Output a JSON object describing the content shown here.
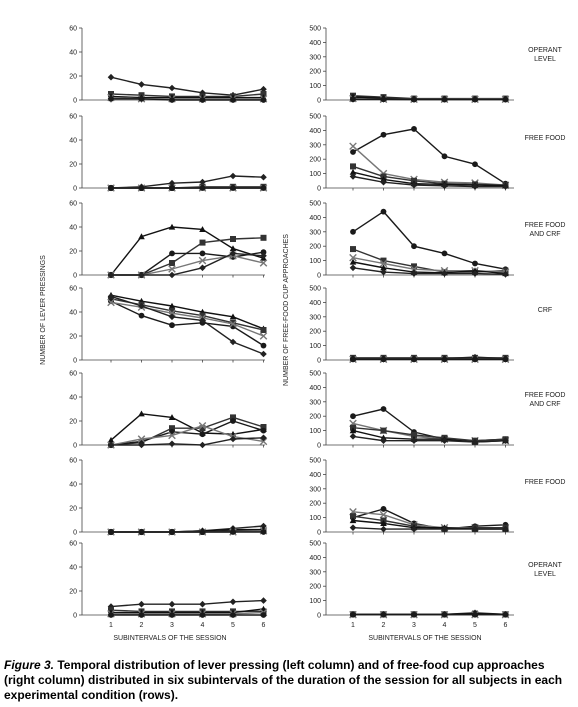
{
  "caption": {
    "label": "Figure 3.",
    "text": " Temporal distribution of lever pressing (left column) and of free-food cup approaches (right column) distributed in six subintervals of the duration of the session for all subjects in each experimental condition (rows)."
  },
  "left_ylabel": "NUMBER OF LEVER PRESSINGS",
  "right_ylabel": "NUMBER OF FREE-FOOD CUP APPROACHES",
  "xlabel": "SUBINTERVALS OF THE SESSION",
  "conditions": [
    {
      "lines": [
        "OPERANT",
        "LEVEL"
      ]
    },
    {
      "lines": [
        "FREE FOOD"
      ]
    },
    {
      "lines": [
        "FREE FOOD",
        "AND CRF"
      ]
    },
    {
      "lines": [
        "CRF"
      ]
    },
    {
      "lines": [
        "FREE FOOD",
        "AND CRF"
      ]
    },
    {
      "lines": [
        "FREE FOOD"
      ]
    },
    {
      "lines": [
        "OPERANT",
        "LEVEL"
      ]
    }
  ],
  "chart_data": {
    "type": "line",
    "x": [
      1,
      2,
      3,
      4,
      5,
      6
    ],
    "x_tick_labels": [
      "1",
      "2",
      "3",
      "4",
      "5",
      "6"
    ],
    "left": {
      "ylim": [
        0,
        60
      ],
      "yticks": [
        "0",
        "20",
        "40",
        "60"
      ],
      "panels": [
        {
          "series": [
            {
              "marker": "diamond",
              "values": [
                19,
                13,
                10,
                6,
                4,
                9
              ]
            },
            {
              "marker": "square",
              "values": [
                5,
                4,
                3,
                3,
                3,
                5
              ]
            },
            {
              "marker": "triangle",
              "values": [
                3,
                2,
                2,
                2,
                2,
                2
              ]
            },
            {
              "marker": "x",
              "values": [
                2,
                1,
                1,
                1,
                1,
                1
              ]
            },
            {
              "marker": "circle",
              "values": [
                1,
                1,
                0,
                0,
                0,
                0
              ]
            }
          ]
        },
        {
          "series": [
            {
              "marker": "diamond",
              "values": [
                0,
                1,
                4,
                5,
                10,
                9
              ]
            },
            {
              "marker": "square",
              "values": [
                0,
                0,
                0,
                1,
                1,
                1
              ]
            },
            {
              "marker": "triangle",
              "values": [
                0,
                0,
                0,
                0,
                0,
                0
              ]
            },
            {
              "marker": "x",
              "values": [
                0,
                0,
                0,
                0,
                0,
                0
              ]
            },
            {
              "marker": "circle",
              "values": [
                0,
                0,
                0,
                0,
                0,
                0
              ]
            }
          ]
        },
        {
          "series": [
            {
              "marker": "triangle",
              "values": [
                0,
                32,
                40,
                38,
                22,
                14
              ]
            },
            {
              "marker": "square",
              "values": [
                0,
                0,
                10,
                27,
                30,
                31
              ]
            },
            {
              "marker": "circle",
              "values": [
                0,
                0,
                18,
                18,
                15,
                19
              ]
            },
            {
              "marker": "x",
              "values": [
                0,
                0,
                5,
                12,
                16,
                10
              ]
            },
            {
              "marker": "diamond",
              "values": [
                0,
                0,
                0,
                6,
                18,
                16
              ]
            }
          ]
        },
        {
          "series": [
            {
              "marker": "triangle",
              "values": [
                54,
                49,
                45,
                40,
                36,
                26
              ]
            },
            {
              "marker": "square",
              "values": [
                51,
                46,
                41,
                37,
                31,
                25
              ]
            },
            {
              "marker": "circle",
              "values": [
                49,
                37,
                29,
                31,
                28,
                12
              ]
            },
            {
              "marker": "x",
              "values": [
                48,
                44,
                39,
                35,
                30,
                20
              ]
            },
            {
              "marker": "diamond",
              "values": [
                53,
                45,
                36,
                33,
                15,
                5
              ]
            }
          ]
        },
        {
          "series": [
            {
              "marker": "triangle",
              "values": [
                4,
                26,
                23,
                10,
                9,
                13
              ]
            },
            {
              "marker": "square",
              "values": [
                0,
                2,
                14,
                14,
                23,
                15
              ]
            },
            {
              "marker": "circle",
              "values": [
                0,
                3,
                11,
                9,
                20,
                12
              ]
            },
            {
              "marker": "x",
              "values": [
                0,
                5,
                8,
                16,
                7,
                3
              ]
            },
            {
              "marker": "diamond",
              "values": [
                0,
                0,
                1,
                0,
                5,
                6
              ]
            }
          ]
        },
        {
          "series": [
            {
              "marker": "diamond",
              "values": [
                0,
                0,
                0,
                1,
                3,
                5
              ]
            },
            {
              "marker": "square",
              "values": [
                0,
                0,
                0,
                0,
                1,
                1
              ]
            },
            {
              "marker": "triangle",
              "values": [
                0,
                0,
                0,
                1,
                2,
                2
              ]
            },
            {
              "marker": "x",
              "values": [
                0,
                0,
                0,
                0,
                0,
                1
              ]
            },
            {
              "marker": "circle",
              "values": [
                0,
                0,
                0,
                0,
                0,
                0
              ]
            }
          ]
        },
        {
          "series": [
            {
              "marker": "diamond",
              "values": [
                7,
                9,
                9,
                9,
                11,
                12
              ]
            },
            {
              "marker": "square",
              "values": [
                4,
                3,
                3,
                3,
                3,
                3
              ]
            },
            {
              "marker": "triangle",
              "values": [
                2,
                2,
                2,
                2,
                2,
                5
              ]
            },
            {
              "marker": "x",
              "values": [
                1,
                1,
                1,
                1,
                1,
                2
              ]
            },
            {
              "marker": "circle",
              "values": [
                0,
                0,
                0,
                0,
                0,
                0
              ]
            }
          ]
        }
      ]
    },
    "right": {
      "ylim": [
        0,
        500
      ],
      "yticks": [
        "0",
        "100",
        "200",
        "300",
        "400",
        "500"
      ],
      "panels": [
        {
          "series": [
            {
              "marker": "square",
              "values": [
                30,
                20,
                10,
                10,
                10,
                10
              ]
            },
            {
              "marker": "diamond",
              "values": [
                25,
                15,
                8,
                8,
                5,
                5
              ]
            },
            {
              "marker": "triangle",
              "values": [
                20,
                10,
                5,
                5,
                5,
                5
              ]
            },
            {
              "marker": "x",
              "values": [
                10,
                5,
                5,
                5,
                5,
                5
              ]
            },
            {
              "marker": "circle",
              "values": [
                5,
                5,
                3,
                3,
                3,
                3
              ]
            }
          ]
        },
        {
          "series": [
            {
              "marker": "circle",
              "values": [
                250,
                370,
                410,
                220,
                165,
                30
              ]
            },
            {
              "marker": "x",
              "values": [
                290,
                100,
                60,
                40,
                35,
                20
              ]
            },
            {
              "marker": "square",
              "values": [
                150,
                80,
                50,
                30,
                25,
                20
              ]
            },
            {
              "marker": "triangle",
              "values": [
                110,
                60,
                30,
                25,
                20,
                15
              ]
            },
            {
              "marker": "diamond",
              "values": [
                80,
                40,
                20,
                15,
                10,
                10
              ]
            }
          ]
        },
        {
          "series": [
            {
              "marker": "circle",
              "values": [
                300,
                440,
                200,
                150,
                80,
                40
              ]
            },
            {
              "marker": "square",
              "values": [
                180,
                100,
                60,
                20,
                20,
                30
              ]
            },
            {
              "marker": "x",
              "values": [
                120,
                80,
                40,
                30,
                30,
                20
              ]
            },
            {
              "marker": "triangle",
              "values": [
                90,
                50,
                20,
                15,
                30,
                10
              ]
            },
            {
              "marker": "diamond",
              "values": [
                50,
                20,
                10,
                10,
                10,
                5
              ]
            }
          ]
        },
        {
          "series": [
            {
              "marker": "square",
              "values": [
                15,
                15,
                15,
                15,
                15,
                15
              ]
            },
            {
              "marker": "diamond",
              "values": [
                10,
                10,
                10,
                10,
                20,
                10
              ]
            },
            {
              "marker": "triangle",
              "values": [
                5,
                5,
                5,
                5,
                5,
                5
              ]
            },
            {
              "marker": "x",
              "values": [
                5,
                5,
                5,
                5,
                5,
                5
              ]
            },
            {
              "marker": "circle",
              "values": [
                5,
                5,
                5,
                5,
                5,
                5
              ]
            }
          ]
        },
        {
          "series": [
            {
              "marker": "circle",
              "values": [
                200,
                250,
                90,
                40,
                30,
                40
              ]
            },
            {
              "marker": "x",
              "values": [
                150,
                100,
                60,
                40,
                30,
                30
              ]
            },
            {
              "marker": "square",
              "values": [
                120,
                100,
                70,
                50,
                30,
                40
              ]
            },
            {
              "marker": "triangle",
              "values": [
                100,
                50,
                40,
                40,
                20,
                30
              ]
            },
            {
              "marker": "diamond",
              "values": [
                60,
                30,
                30,
                30,
                20,
                30
              ]
            }
          ]
        },
        {
          "series": [
            {
              "marker": "circle",
              "values": [
                100,
                160,
                60,
                20,
                40,
                50
              ]
            },
            {
              "marker": "x",
              "values": [
                140,
                120,
                50,
                30,
                30,
                30
              ]
            },
            {
              "marker": "square",
              "values": [
                110,
                80,
                40,
                20,
                30,
                30
              ]
            },
            {
              "marker": "triangle",
              "values": [
                80,
                60,
                30,
                30,
                20,
                20
              ]
            },
            {
              "marker": "diamond",
              "values": [
                30,
                20,
                20,
                20,
                20,
                20
              ]
            }
          ]
        },
        {
          "series": [
            {
              "marker": "square",
              "values": [
                5,
                5,
                5,
                5,
                10,
                5
              ]
            },
            {
              "marker": "diamond",
              "values": [
                5,
                5,
                5,
                5,
                15,
                5
              ]
            },
            {
              "marker": "triangle",
              "values": [
                3,
                3,
                3,
                3,
                10,
                3
              ]
            },
            {
              "marker": "x",
              "values": [
                2,
                2,
                2,
                2,
                2,
                2
              ]
            },
            {
              "marker": "circle",
              "values": [
                2,
                2,
                2,
                2,
                2,
                2
              ]
            }
          ]
        }
      ]
    }
  }
}
